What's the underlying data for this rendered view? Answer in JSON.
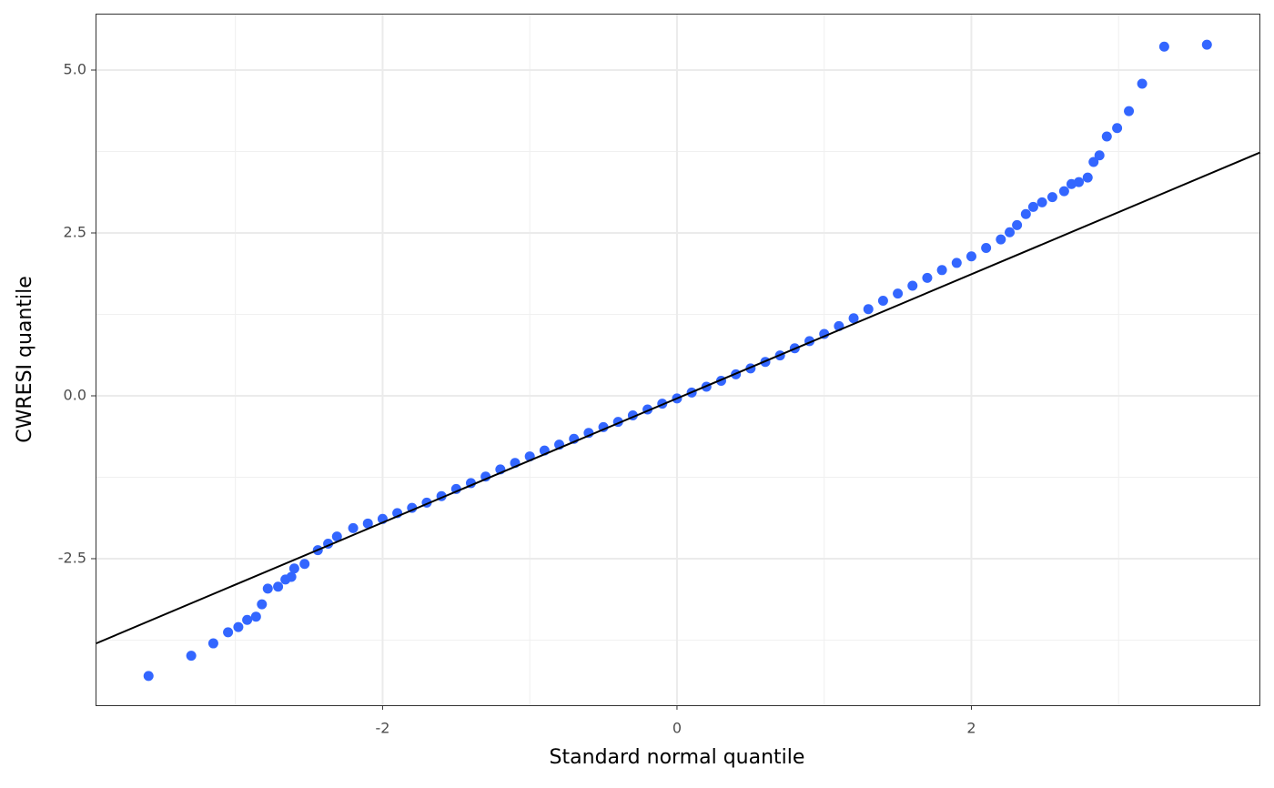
{
  "chart_data": {
    "type": "scatter",
    "x_label": "Standard normal quantile",
    "y_label": "CWRESI quantile",
    "color": "#3366ff",
    "x": [
      -3.59,
      -3.3,
      -3.15,
      -3.05,
      -2.98,
      -2.92,
      -2.86,
      -2.82,
      -2.78,
      -2.71,
      -2.66,
      -2.62,
      -2.6,
      -2.53,
      -2.44,
      -2.37,
      -2.31,
      -2.2,
      -2.1,
      -2.0,
      -1.9,
      -1.8,
      -1.7,
      -1.6,
      -1.5,
      -1.4,
      -1.3,
      -1.2,
      -1.1,
      -1.0,
      -0.9,
      -0.8,
      -0.7,
      -0.6,
      -0.5,
      -0.4,
      -0.3,
      -0.2,
      -0.1,
      0,
      0.1,
      0.2,
      0.3,
      0.4,
      0.5,
      0.6,
      0.7,
      0.8,
      0.9,
      1.0,
      1.1,
      1.2,
      1.3,
      1.4,
      1.5,
      1.6,
      1.7,
      1.8,
      1.9,
      2.0,
      2.1,
      2.2,
      2.26,
      2.31,
      2.37,
      2.42,
      2.48,
      2.55,
      2.63,
      2.68,
      2.73,
      2.79,
      2.83,
      2.87,
      2.92,
      2.99,
      3.07,
      3.16,
      3.31,
      3.6
    ],
    "values": [
      -4.3,
      -3.99,
      -3.8,
      -3.63,
      -3.55,
      -3.44,
      -3.39,
      -3.2,
      -2.96,
      -2.93,
      -2.82,
      -2.78,
      -2.65,
      -2.58,
      -2.37,
      -2.27,
      -2.16,
      -2.03,
      -1.96,
      -1.89,
      -1.8,
      -1.72,
      -1.64,
      -1.54,
      -1.43,
      -1.34,
      -1.24,
      -1.13,
      -1.03,
      -0.93,
      -0.84,
      -0.75,
      -0.66,
      -0.57,
      -0.48,
      -0.4,
      -0.3,
      -0.21,
      -0.12,
      -0.04,
      0.05,
      0.14,
      0.23,
      0.33,
      0.42,
      0.52,
      0.62,
      0.73,
      0.84,
      0.95,
      1.07,
      1.19,
      1.33,
      1.46,
      1.57,
      1.69,
      1.81,
      1.93,
      2.04,
      2.14,
      2.27,
      2.4,
      2.51,
      2.62,
      2.79,
      2.9,
      2.97,
      3.05,
      3.14,
      3.25,
      3.28,
      3.35,
      3.59,
      3.69,
      3.98,
      4.11,
      4.37,
      4.79,
      5.36,
      5.39
    ],
    "reference_line": {
      "slope": 0.953,
      "intercept": -0.04,
      "color": "#000000"
    },
    "xlim": [
      -3.95,
      3.963
    ],
    "ylim": [
      -4.749,
      5.866
    ],
    "xticks": [
      -2,
      0,
      2
    ],
    "yticks": [
      {
        "value": -2.5,
        "label": "-2.5"
      },
      {
        "value": 0,
        "label": "0.0"
      },
      {
        "value": 2.5,
        "label": "2.5"
      },
      {
        "value": 5,
        "label": "5.0"
      }
    ],
    "x_minor_grid": [
      -3,
      -1,
      1,
      3
    ],
    "y_minor_grid": [
      -3.75,
      -1.25,
      1.25,
      3.75
    ],
    "grid": true
  }
}
